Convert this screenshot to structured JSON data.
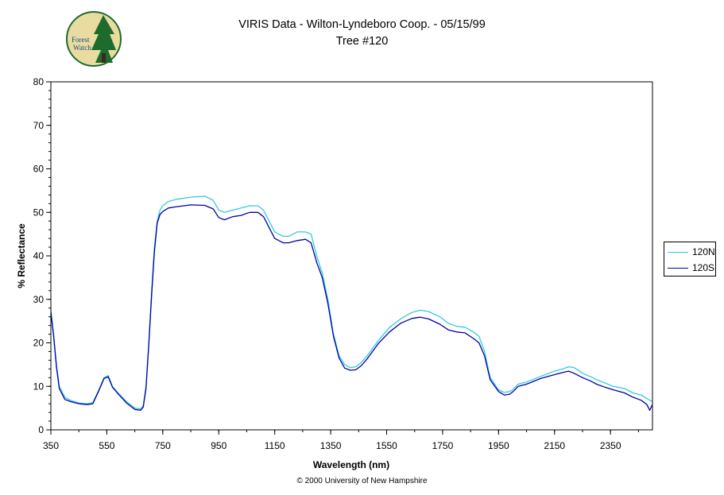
{
  "header": {
    "title_line1": "VIRIS Data - Wilton-Lyndeboro Coop. - 05/15/99",
    "title_line2": "Tree #120"
  },
  "logo": {
    "line1": "Forest",
    "line2": "Watch"
  },
  "footer": {
    "copyright": "© 2000 University of New Hampshire"
  },
  "colors": {
    "series_120N": "#33ccdd",
    "series_120S": "#0000aa",
    "logo_bg": "#e8dca0",
    "logo_tree": "#1e6b2e"
  },
  "chart_data": {
    "type": "line",
    "title": "VIRIS Data - Wilton-Lyndeboro Coop. - 05/15/99",
    "subtitle": "Tree #120",
    "xlabel": "Wavelength (nm)",
    "ylabel": "% Reflectance",
    "xlim": [
      350,
      2500
    ],
    "ylim": [
      0,
      80
    ],
    "x_ticks": [
      350,
      550,
      750,
      950,
      1150,
      1350,
      1550,
      1750,
      1950,
      2150,
      2350
    ],
    "y_ticks": [
      0,
      10,
      20,
      30,
      40,
      50,
      60,
      70,
      80
    ],
    "grid": false,
    "legend_position": "right",
    "series": [
      {
        "name": "120N",
        "color": "#33ccdd",
        "x": [
          350,
          360,
          370,
          380,
          400,
          420,
          450,
          480,
          500,
          520,
          540,
          555,
          570,
          590,
          620,
          650,
          670,
          680,
          690,
          700,
          710,
          720,
          730,
          740,
          750,
          770,
          800,
          850,
          900,
          930,
          950,
          970,
          1000,
          1030,
          1060,
          1090,
          1110,
          1130,
          1150,
          1180,
          1200,
          1230,
          1260,
          1280,
          1300,
          1320,
          1340,
          1360,
          1380,
          1400,
          1420,
          1440,
          1460,
          1480,
          1520,
          1560,
          1600,
          1640,
          1670,
          1700,
          1740,
          1770,
          1800,
          1830,
          1860,
          1880,
          1900,
          1920,
          1950,
          1970,
          1990,
          2000,
          2020,
          2050,
          2100,
          2150,
          2180,
          2200,
          2220,
          2250,
          2280,
          2300,
          2330,
          2360,
          2400,
          2430,
          2460,
          2480,
          2490,
          2500
        ],
        "y": [
          27.5,
          22,
          15,
          10,
          7.5,
          6.8,
          6.2,
          6,
          6.3,
          9,
          12,
          12.5,
          10,
          8.5,
          6.5,
          5,
          4.8,
          5.5,
          10,
          20,
          32,
          42,
          48,
          50.5,
          51.5,
          52.5,
          53,
          53.5,
          53.7,
          52.8,
          50.5,
          50,
          50.5,
          51,
          51.5,
          51.5,
          50.5,
          48,
          45.5,
          44.5,
          44.5,
          45.5,
          45.5,
          45,
          40,
          36,
          30,
          22,
          17,
          15,
          14.3,
          14.5,
          15.5,
          17,
          20.5,
          23.5,
          25.5,
          27,
          27.5,
          27.2,
          26,
          24.5,
          23.8,
          23.6,
          22.5,
          21.5,
          18,
          12,
          9.2,
          8.6,
          8.8,
          9.2,
          10.5,
          11,
          12.3,
          13.5,
          14,
          14.5,
          14.3,
          13,
          12.2,
          11.5,
          10.8,
          10,
          9.5,
          8.5,
          8,
          7.2,
          6.8,
          6.5
        ]
      },
      {
        "name": "120S",
        "color": "#0000aa",
        "x": [
          350,
          360,
          370,
          380,
          400,
          420,
          450,
          480,
          500,
          520,
          540,
          555,
          570,
          590,
          620,
          650,
          670,
          680,
          690,
          700,
          710,
          720,
          730,
          740,
          750,
          770,
          800,
          850,
          900,
          930,
          950,
          970,
          1000,
          1030,
          1060,
          1090,
          1110,
          1130,
          1150,
          1180,
          1200,
          1230,
          1260,
          1280,
          1300,
          1320,
          1340,
          1360,
          1380,
          1400,
          1420,
          1440,
          1460,
          1480,
          1520,
          1560,
          1600,
          1640,
          1670,
          1700,
          1740,
          1770,
          1800,
          1830,
          1860,
          1880,
          1900,
          1920,
          1950,
          1970,
          1990,
          2000,
          2020,
          2050,
          2100,
          2150,
          2180,
          2200,
          2220,
          2250,
          2280,
          2300,
          2330,
          2360,
          2400,
          2430,
          2460,
          2480,
          2490,
          2500
        ],
        "y": [
          27,
          21.5,
          14.5,
          9.5,
          7,
          6.5,
          6,
          5.8,
          6,
          8.8,
          11.8,
          12.2,
          9.8,
          8.3,
          6.2,
          4.7,
          4.5,
          5.2,
          9.5,
          19.5,
          31,
          41,
          47.5,
          49.5,
          50.2,
          51,
          51.3,
          51.7,
          51.6,
          50.8,
          48.8,
          48.3,
          49,
          49.3,
          50,
          50,
          49,
          46.5,
          44,
          43,
          43,
          43.5,
          43.8,
          43,
          38.5,
          35,
          29,
          21.5,
          16.5,
          14.2,
          13.7,
          13.8,
          14.8,
          16.3,
          19.8,
          22.5,
          24.5,
          25.6,
          25.9,
          25.5,
          24.3,
          23,
          22.5,
          22.3,
          21,
          20,
          17,
          11.5,
          8.8,
          8,
          8.2,
          8.7,
          10,
          10.5,
          11.8,
          12.7,
          13.2,
          13.5,
          13,
          12,
          11.2,
          10.5,
          9.8,
          9.2,
          8.5,
          7.5,
          6.8,
          5.8,
          4.5,
          5.8
        ]
      }
    ]
  }
}
